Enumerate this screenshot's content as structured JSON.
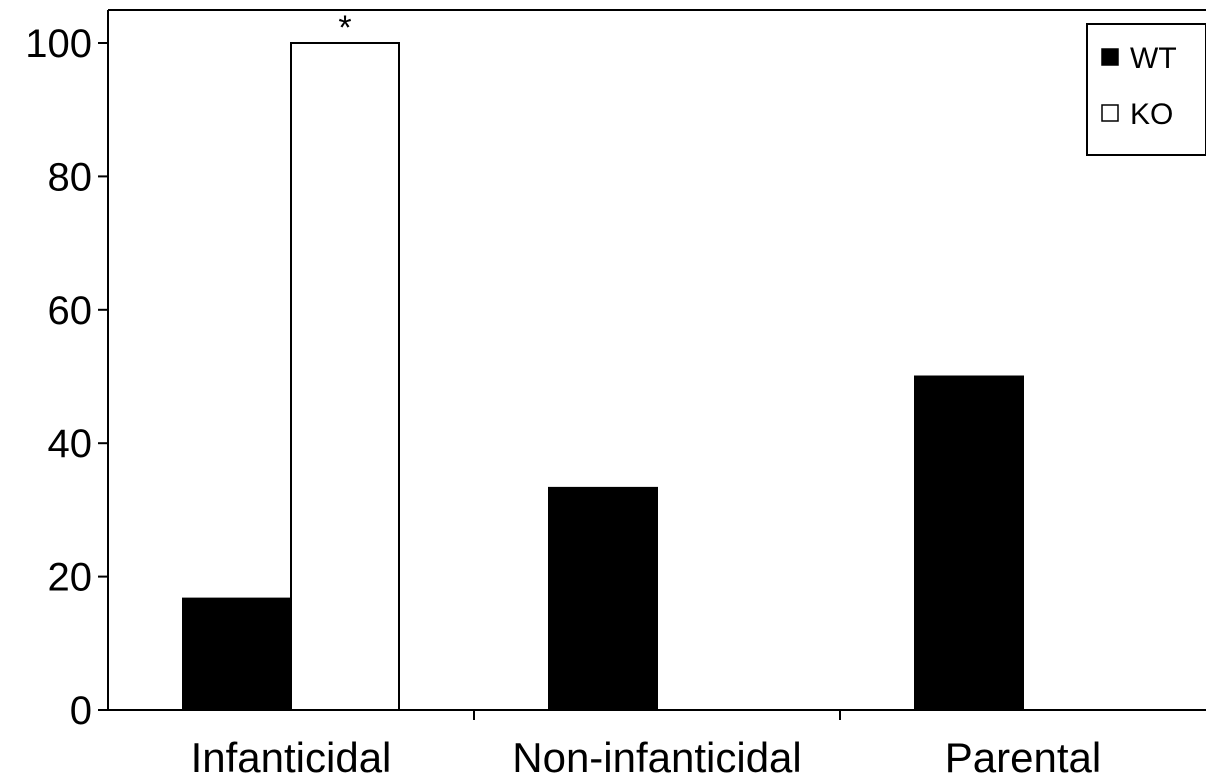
{
  "chart_data": {
    "type": "bar",
    "categories": [
      "Infanticidal",
      "Non-infanticidal",
      "Parental"
    ],
    "series": [
      {
        "name": "WT",
        "values": [
          16.7,
          33.3,
          50.0
        ],
        "color": "#000000"
      },
      {
        "name": "KO",
        "values": [
          100.0,
          0,
          0
        ],
        "color": "#ffffff"
      }
    ],
    "ylim": [
      0,
      100
    ],
    "yticks": [
      0,
      20,
      40,
      60,
      80,
      100
    ],
    "ytick_labels": [
      "0",
      "20",
      "40",
      "60",
      "80",
      "100"
    ],
    "xlabel": "",
    "ylabel": "",
    "title": "",
    "legend": {
      "placement": "top-right",
      "entries": [
        "WT",
        "KO"
      ]
    },
    "annotations": [
      {
        "text": "*",
        "category": "Infanticidal",
        "series": "KO"
      }
    ],
    "grid": false
  }
}
